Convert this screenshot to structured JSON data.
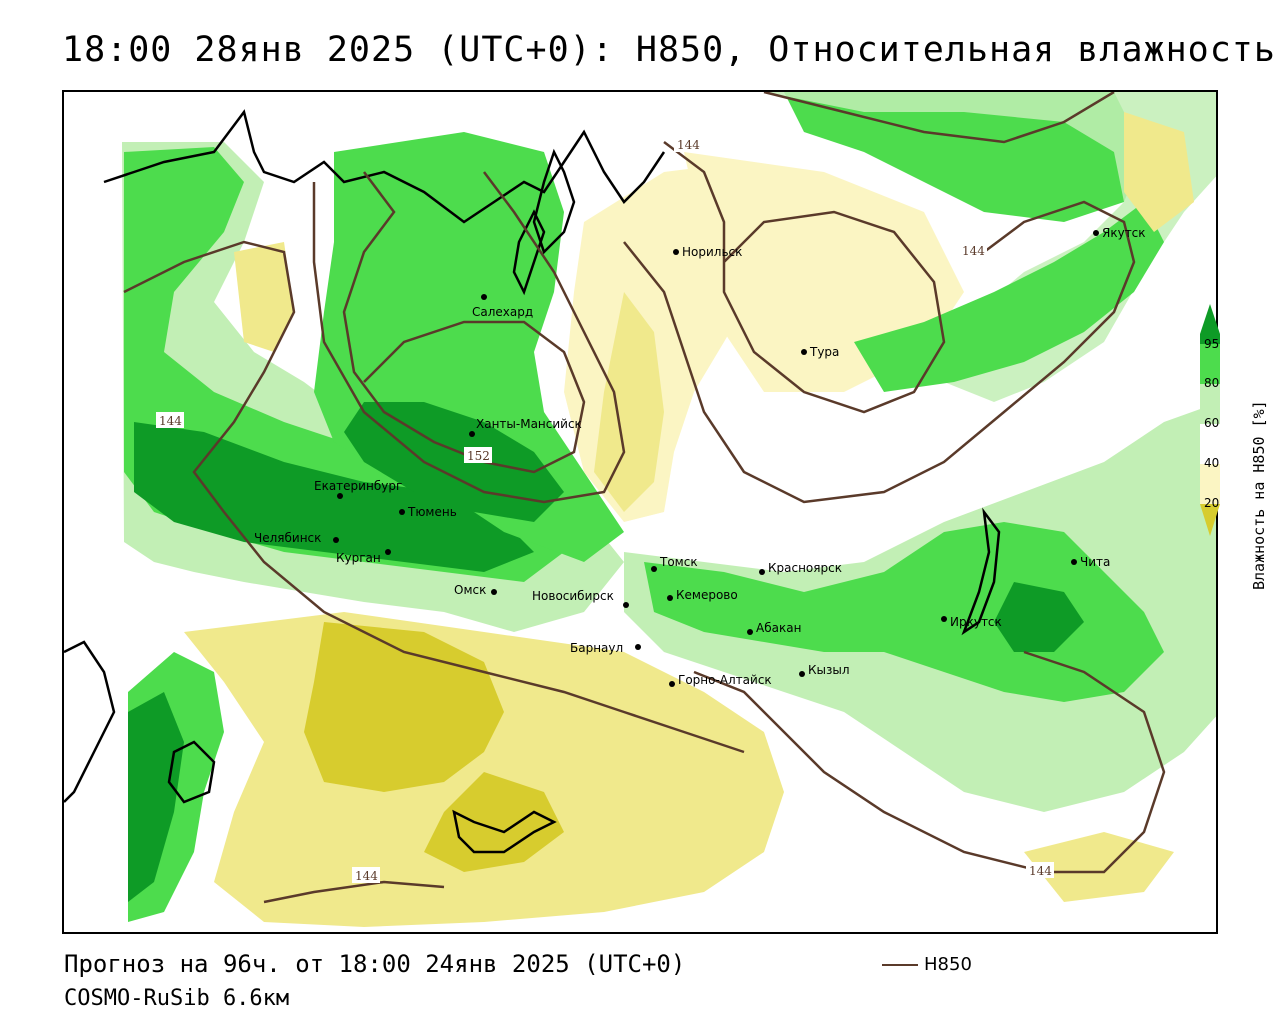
{
  "title": "18:00 28янв 2025 (UTC+0): H850, Относительная влажность",
  "footer": {
    "forecast": "Прогноз на 96ч. от 18:00 24янв 2025 (UTC+0)",
    "model": "COSMO-RuSib 6.6км"
  },
  "legend": {
    "contour_label": "H850",
    "contour_color": "#5a3a2a",
    "colorbar_title": "Влажность на H850 [%]",
    "ticks": [
      "95",
      "80",
      "60",
      "40",
      "20"
    ],
    "colors": {
      "very_dry": "#d7cc2e",
      "dry": "#f0e98c",
      "slightly_dry": "#fbf5c3",
      "neutral": "#ffffff",
      "moist": "#c2efb5",
      "wet": "#4ddc4d",
      "very_wet": "#0e9b26"
    }
  },
  "contour_labels": [
    "144",
    "144",
    "144",
    "152",
    "144",
    "144"
  ],
  "cities": [
    {
      "name": "Норильск"
    },
    {
      "name": "Якутск"
    },
    {
      "name": "Салехард"
    },
    {
      "name": "Тура"
    },
    {
      "name": "Ханты-Мансийск"
    },
    {
      "name": "Екатеринбург"
    },
    {
      "name": "Тюмень"
    },
    {
      "name": "Челябинск"
    },
    {
      "name": "Курган"
    },
    {
      "name": "Омск"
    },
    {
      "name": "Новосибирск"
    },
    {
      "name": "Томск"
    },
    {
      "name": "Красноярск"
    },
    {
      "name": "Кемерово"
    },
    {
      "name": "Абакан"
    },
    {
      "name": "Барнаул"
    },
    {
      "name": "Горно-Алтайск"
    },
    {
      "name": "Кызыл"
    },
    {
      "name": "Иркутск"
    },
    {
      "name": "Чита"
    }
  ]
}
